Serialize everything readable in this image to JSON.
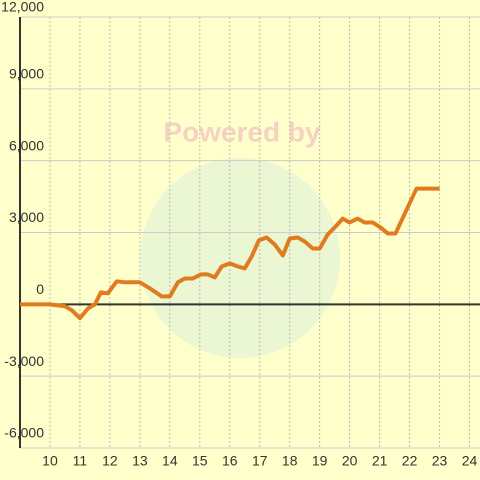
{
  "chart_data": {
    "type": "line",
    "watermark": "Powered by",
    "x": [
      9,
      10,
      10.5,
      10.73,
      11,
      11.27,
      11.5,
      11.7,
      11.93,
      12.23,
      12.5,
      13,
      13.33,
      13.73,
      14,
      14.27,
      14.5,
      14.77,
      15.03,
      15.27,
      15.5,
      15.73,
      16,
      16.27,
      16.5,
      16.73,
      16.97,
      17.23,
      17.5,
      17.77,
      18,
      18.27,
      18.5,
      18.77,
      19,
      19.27,
      19.53,
      19.77,
      20,
      20.27,
      20.5,
      20.77,
      21.03,
      21.27,
      21.53,
      22.23,
      23
    ],
    "series": [
      {
        "color": "#e07b20",
        "values": [
          0,
          0,
          -80,
          -250,
          -580,
          -170,
          0,
          500,
          460,
          960,
          920,
          920,
          670,
          330,
          330,
          920,
          1080,
          1080,
          1250,
          1250,
          1125,
          1580,
          1710,
          1580,
          1500,
          2000,
          2670,
          2790,
          2500,
          2040,
          2750,
          2790,
          2625,
          2330,
          2330,
          2920,
          3250,
          3580,
          3420,
          3580,
          3420,
          3420,
          3210,
          2960,
          2960,
          4830,
          4830
        ]
      }
    ],
    "xlim": [
      9,
      24.35
    ],
    "xticks": [
      10,
      11,
      12,
      13,
      14,
      15,
      16,
      17,
      18,
      19,
      20,
      21,
      22,
      23,
      24
    ],
    "ylim": [
      -6000,
      12000
    ],
    "yticks": [
      {
        "value": -6000,
        "label": "-6,000"
      },
      {
        "value": -3000,
        "label": "-3,000"
      },
      0,
      {
        "value": 3000,
        "label": "3,000"
      },
      {
        "value": 6000,
        "label": "6,000"
      },
      {
        "value": 9000,
        "label": "9,000"
      },
      {
        "value": 12000,
        "label": "12,000"
      }
    ],
    "grid": true
  }
}
